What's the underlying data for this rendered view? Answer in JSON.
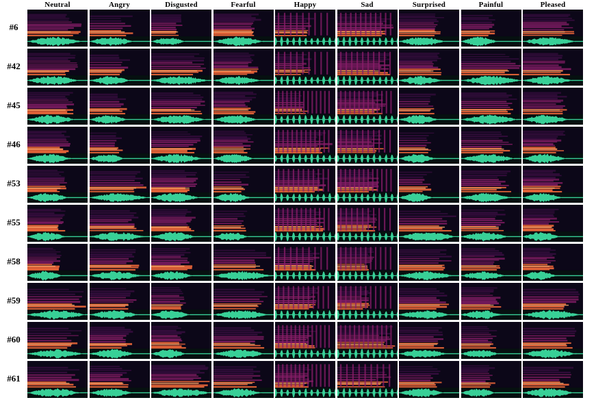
{
  "emotions": [
    "Neutral",
    "Angry",
    "Disgusted",
    "Fearful",
    "Happy",
    "Sad",
    "Surprised",
    "Painful",
    "Pleased"
  ],
  "speakers": [
    "#6",
    "#42",
    "#45",
    "#46",
    "#53",
    "#55",
    "#58",
    "#59",
    "#60",
    "#61"
  ],
  "colors": {
    "background": "#ffffff",
    "spectrogram_low": "#0c0718",
    "spectrogram_mid": "#8a1e6a",
    "spectrogram_high": "#f26a3a",
    "spectrogram_peak": "#ffb070",
    "waveform": "#3ee6a6"
  }
}
